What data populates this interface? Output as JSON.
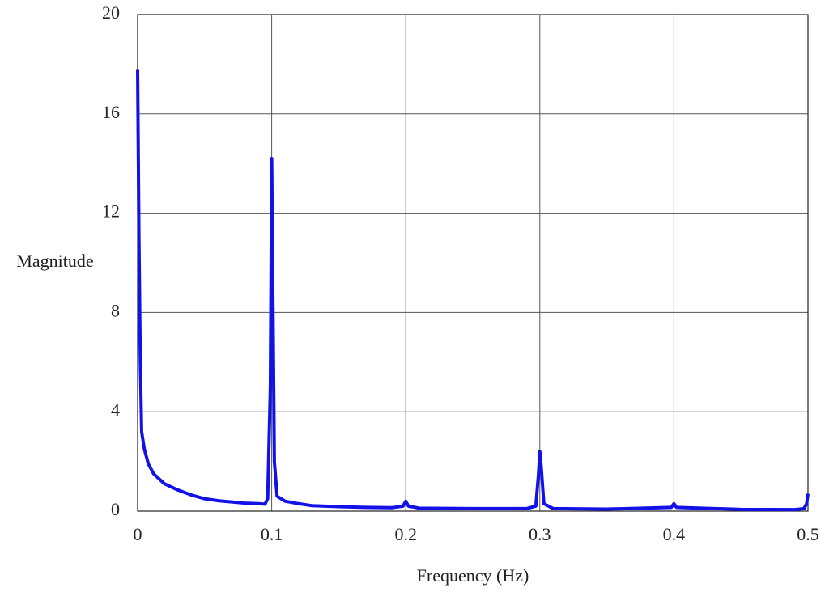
{
  "chart_data": {
    "type": "line",
    "x_label": "Frequency (Hz)",
    "y_label": "Magnitude",
    "x": [
      0,
      0.001,
      0.002,
      0.003,
      0.005,
      0.008,
      0.012,
      0.02,
      0.03,
      0.04,
      0.05,
      0.06,
      0.07,
      0.08,
      0.09,
      0.095,
      0.097,
      0.099,
      0.1,
      0.101,
      0.102,
      0.104,
      0.11,
      0.12,
      0.13,
      0.15,
      0.17,
      0.19,
      0.198,
      0.2,
      0.202,
      0.21,
      0.25,
      0.29,
      0.297,
      0.299,
      0.3,
      0.301,
      0.303,
      0.31,
      0.35,
      0.398,
      0.4,
      0.402,
      0.45,
      0.49,
      0.497,
      0.499,
      0.5
    ],
    "values": [
      17.8,
      11,
      6,
      3.2,
      2.5,
      1.9,
      1.5,
      1.1,
      0.85,
      0.65,
      0.5,
      0.42,
      0.37,
      0.32,
      0.3,
      0.28,
      0.5,
      5,
      14.2,
      8,
      2,
      0.6,
      0.4,
      0.3,
      0.22,
      0.18,
      0.15,
      0.14,
      0.2,
      0.4,
      0.2,
      0.12,
      0.1,
      0.1,
      0.2,
      1.5,
      2.4,
      1.8,
      0.3,
      0.1,
      0.08,
      0.15,
      0.3,
      0.15,
      0.07,
      0.06,
      0.1,
      0.3,
      0.7
    ],
    "color": "#1212e8",
    "xlim": [
      0,
      0.5
    ],
    "xticks": [
      0,
      0.1,
      0.2,
      0.3,
      0.4,
      0.5
    ],
    "ylim": [
      0,
      20
    ],
    "yticks": [
      0,
      4,
      8,
      12,
      16,
      20
    ],
    "grid": true
  }
}
